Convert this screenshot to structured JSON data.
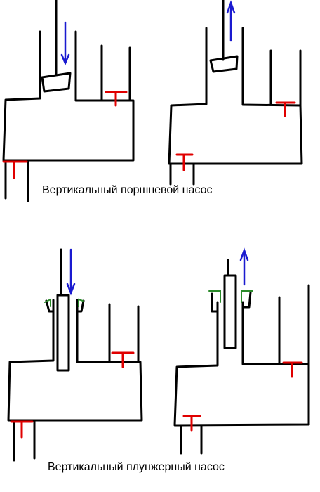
{
  "captions": {
    "piston_pump": "Вертикальный поршневой насос",
    "plunger_pump": "Вертикальный плунжерный насос"
  },
  "colors": {
    "outline": "#000000",
    "motion_arrow": "#1a1ad0",
    "valve": "#e00000",
    "seal": "#2a8a2a"
  }
}
